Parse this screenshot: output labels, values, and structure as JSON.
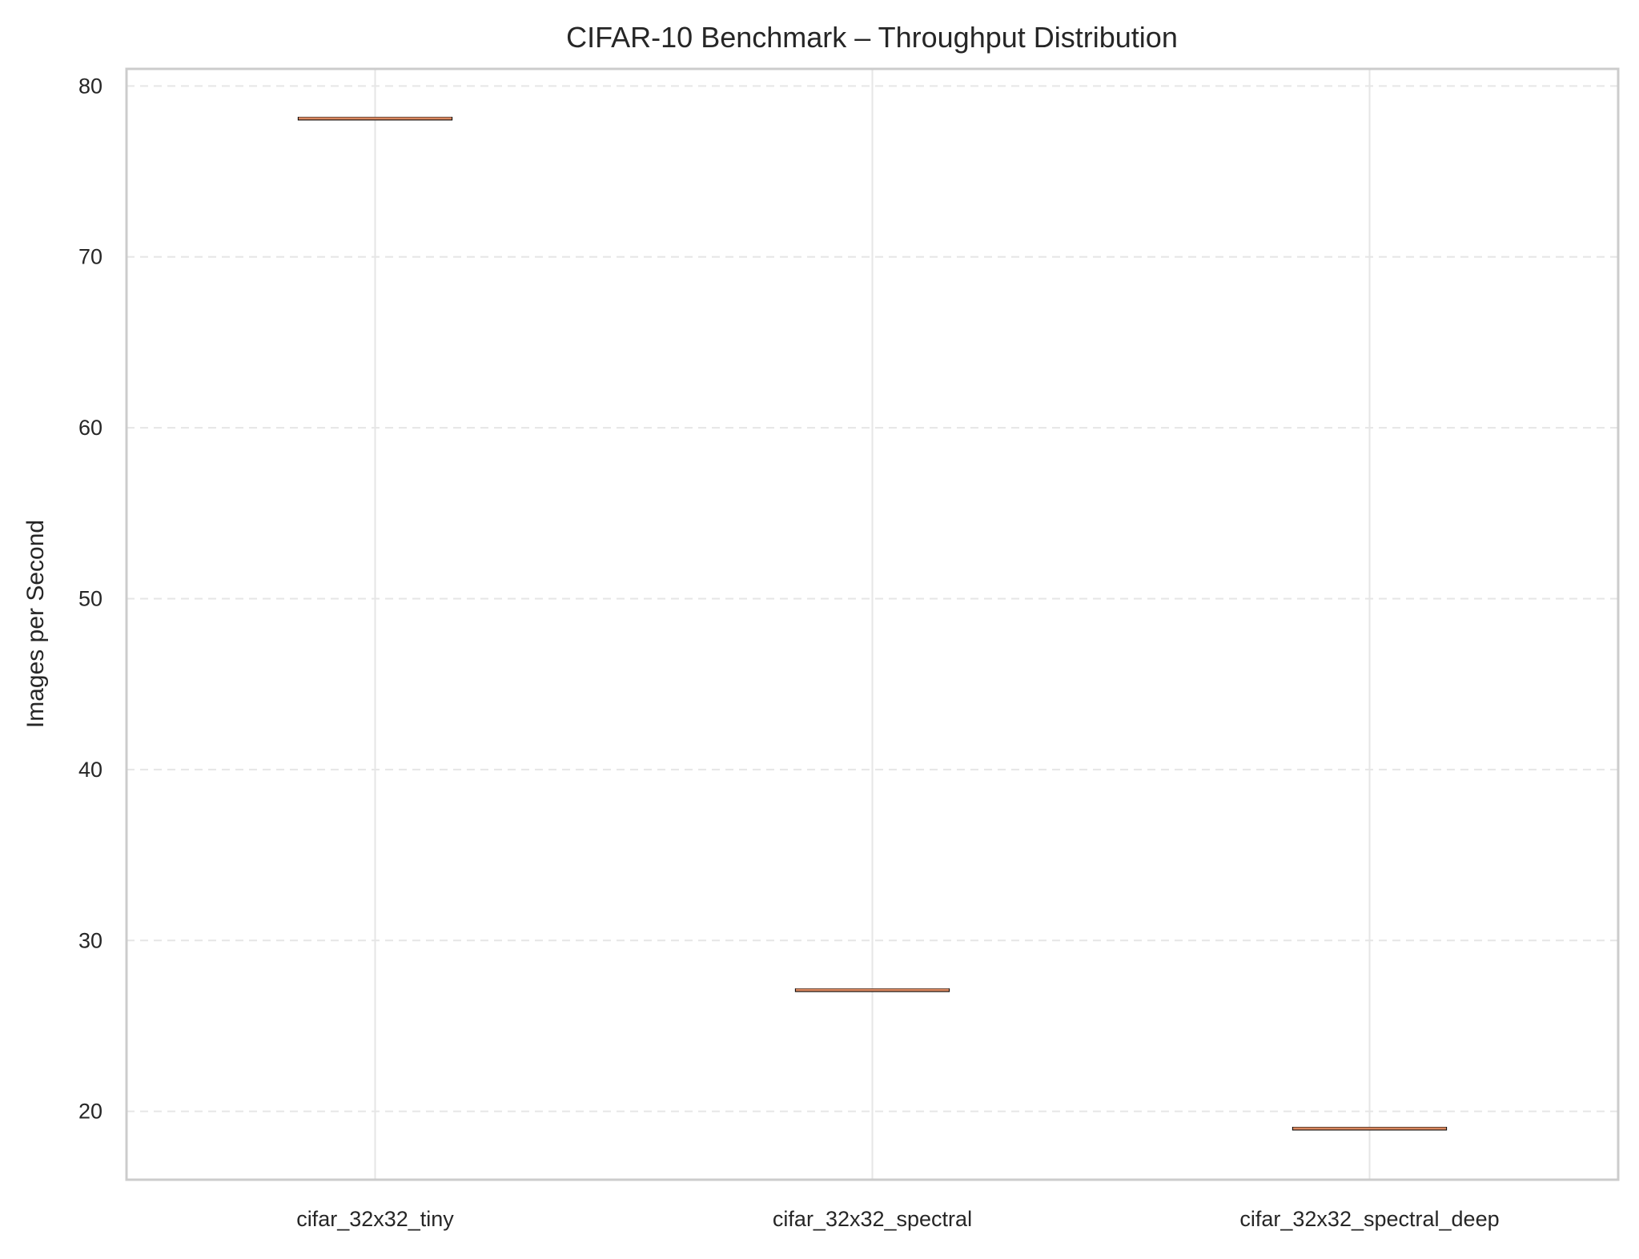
{
  "chart_data": {
    "type": "box",
    "title": "CIFAR-10 Benchmark – Throughput Distribution",
    "xlabel": "",
    "ylabel": "Images per Second",
    "ylim": [
      16,
      81
    ],
    "yticks": [
      20,
      30,
      40,
      50,
      60,
      70,
      80
    ],
    "grid": {
      "y": true,
      "x": true,
      "y_style": "dashed"
    },
    "categories": [
      "cifar_32x32_tiny",
      "cifar_32x32_spectral",
      "cifar_32x32_spectral_deep"
    ],
    "values": [
      78.1,
      27.1,
      19.0
    ],
    "boxes": [
      {
        "category": "cifar_32x32_tiny",
        "min": 78.1,
        "q1": 78.1,
        "median": 78.1,
        "q3": 78.1,
        "max": 78.1
      },
      {
        "category": "cifar_32x32_spectral",
        "min": 27.1,
        "q1": 27.1,
        "median": 27.1,
        "q3": 27.1,
        "max": 27.1
      },
      {
        "category": "cifar_32x32_spectral_deep",
        "min": 19.0,
        "q1": 19.0,
        "median": 19.0,
        "q3": 19.0,
        "max": 19.0
      }
    ],
    "colors": {
      "median": "#d9875f",
      "box_edge": "#000000",
      "spine": "#cccccc",
      "grid": "#e6e6e6",
      "text": "#262626"
    }
  }
}
